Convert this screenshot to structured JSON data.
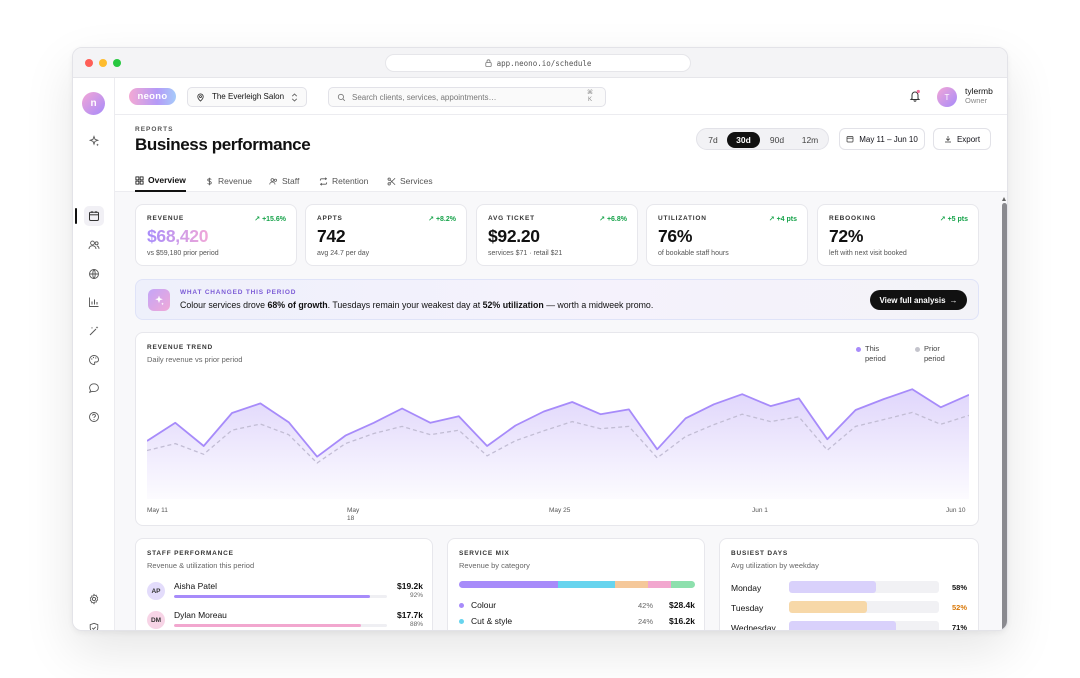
{
  "browser": {
    "url": "app.neono.io/schedule"
  },
  "sidebar": {
    "logo_letter": "n"
  },
  "topbar": {
    "brand": "neono",
    "salon_name": "The Everleigh Salon",
    "search_placeholder": "Search clients, services, appointments…",
    "search_shortcut_top": "⌘",
    "search_shortcut_bottom": "K",
    "user": {
      "initial": "T",
      "name": "tylermb",
      "role": "Owner"
    }
  },
  "page": {
    "eyebrow": "REPORTS",
    "title": "Business performance",
    "ranges": [
      "7d",
      "30d",
      "90d",
      "12m"
    ],
    "active_range": "30d",
    "date_range": "May 11 – Jun 10",
    "export_label": "Export",
    "tabs": [
      "Overview",
      "Revenue",
      "Staff",
      "Retention",
      "Services"
    ],
    "active_tab": "Overview"
  },
  "kpis": [
    {
      "label": "REVENUE",
      "delta": "+15.6%",
      "value": "$68,420",
      "sub": "vs $59,180 prior period"
    },
    {
      "label": "APPTS",
      "delta": "+8.2%",
      "value": "742",
      "sub": "avg 24.7 per day"
    },
    {
      "label": "AVG TICKET",
      "delta": "+6.8%",
      "value": "$92.20",
      "sub": "services $71 · retail $21"
    },
    {
      "label": "UTILIZATION",
      "delta": "+4 pts",
      "value": "76%",
      "sub": "of bookable staff hours"
    },
    {
      "label": "REBOOKING",
      "delta": "+5 pts",
      "value": "72%",
      "sub": "left with next visit booked"
    }
  ],
  "insight": {
    "eyebrow": "WHAT CHANGED THIS PERIOD",
    "t1": "Colour services drove ",
    "b1": "68% of growth",
    "t2": ". Tuesdays remain your weakest day at ",
    "b2": "52% utilization",
    "t3": " — worth a midweek promo.",
    "button": "View full analysis"
  },
  "colors": {
    "accent": "#a78bfa",
    "prior": "#c4c4cc",
    "positive": "#16a34a",
    "warning": "#d97706"
  },
  "chart_data": {
    "type": "area",
    "title": "REVENUE TREND",
    "subtitle": "Daily revenue vs prior period",
    "x": [
      "May 11",
      "May 12",
      "May 13",
      "May 14",
      "May 15",
      "May 16",
      "May 17",
      "May 18",
      "May 19",
      "May 20",
      "May 21",
      "May 22",
      "May 23",
      "May 24",
      "May 25",
      "May 26",
      "May 27",
      "May 28",
      "May 29",
      "May 30",
      "May 31",
      "Jun 1",
      "Jun 2",
      "Jun 3",
      "Jun 4",
      "Jun 5",
      "Jun 6",
      "Jun 7",
      "Jun 8",
      "Jun 9"
    ],
    "x_tick_labels": [
      "May 11",
      "May 18",
      "May 25",
      "Jun 1",
      "Jun 10"
    ],
    "series": [
      {
        "name": "This period",
        "values": [
          1950,
          2560,
          1780,
          2890,
          3210,
          2580,
          1420,
          2130,
          2560,
          3040,
          2560,
          2780,
          1780,
          2470,
          2940,
          3260,
          2850,
          3010,
          1670,
          2710,
          3180,
          3520,
          3120,
          3380,
          2010,
          2990,
          3360,
          3690,
          3080,
          3500
        ]
      },
      {
        "name": "Prior period",
        "values": [
          1630,
          1860,
          1500,
          2310,
          2520,
          2160,
          1210,
          1860,
          2200,
          2440,
          2160,
          2310,
          1450,
          1960,
          2290,
          2600,
          2360,
          2440,
          1380,
          2100,
          2500,
          2850,
          2600,
          2760,
          1640,
          2440,
          2670,
          2910,
          2510,
          2810
        ]
      }
    ],
    "ylim": [
      0,
      4300
    ],
    "grid": false,
    "legend": "top-right"
  },
  "staff": {
    "title": "STAFF PERFORMANCE",
    "subtitle": "Revenue & utilization this period",
    "rows": [
      {
        "initials": "AP",
        "name": "Aisha Patel",
        "amount": "$19.2k",
        "pct": "92%",
        "util": 0.92
      },
      {
        "initials": "DM",
        "name": "Dylan Moreau",
        "amount": "$17.7k",
        "pct": "88%",
        "util": 0.88
      }
    ]
  },
  "mix": {
    "title": "SERVICE MIX",
    "subtitle": "Revenue by category",
    "segments": [
      {
        "share": 0.42,
        "color": "#a78bfa"
      },
      {
        "share": 0.24,
        "color": "#67d4ee"
      },
      {
        "share": 0.14,
        "color": "#f5c89a"
      },
      {
        "share": 0.1,
        "color": "#f2a7cf"
      },
      {
        "share": 0.1,
        "color": "#8de0ad"
      }
    ],
    "rows": [
      {
        "name": "Colour",
        "pct": "42%",
        "amount": "$28.4k",
        "color": "#a78bfa"
      },
      {
        "name": "Cut & style",
        "pct": "24%",
        "amount": "$16.2k",
        "color": "#67d4ee"
      }
    ]
  },
  "days": {
    "title": "BUSIEST DAYS",
    "subtitle": "Avg utilization by weekday",
    "rows": [
      {
        "day": "Monday",
        "pct": "58%",
        "value": 0.58,
        "color": "#d9d1fb",
        "pct_color": "#111111"
      },
      {
        "day": "Tuesday",
        "pct": "52%",
        "value": 0.52,
        "color": "#f7d8a8",
        "pct_color": "#d97706"
      },
      {
        "day": "Wednesday",
        "pct": "71%",
        "value": 0.71,
        "color": "#d9d1fb",
        "pct_color": "#111111"
      }
    ]
  }
}
